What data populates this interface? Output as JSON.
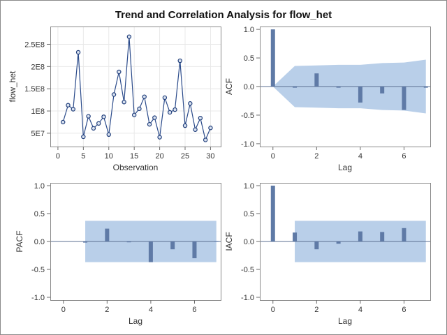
{
  "title": "Trend and Correlation Analysis for flow_het",
  "colors": {
    "series": "#2a4a8a",
    "band": "#b9cfe9",
    "bar": "#5f7aa6"
  },
  "chart_data": [
    {
      "id": "trend",
      "type": "line",
      "xlabel": "Observation",
      "ylabel": "flow_het",
      "xlim": [
        -1.5,
        32
      ],
      "ylim": [
        20000000,
        290000000
      ],
      "x_ticks": [
        0,
        5,
        10,
        15,
        20,
        25,
        30
      ],
      "y_ticks": [
        50000000,
        100000000,
        150000000,
        200000000,
        250000000
      ],
      "y_tick_labels": [
        "5E7",
        "1E8",
        "1.5E8",
        "2E8",
        "2.5E8"
      ],
      "grid": true,
      "x": [
        1,
        2,
        3,
        4,
        5,
        6,
        7,
        8,
        9,
        10,
        11,
        12,
        13,
        14,
        15,
        16,
        17,
        18,
        19,
        20,
        21,
        22,
        23,
        24,
        25,
        26,
        27,
        28,
        29,
        30
      ],
      "values": [
        75000000,
        113000000,
        104000000,
        232000000,
        42000000,
        88000000,
        61000000,
        72000000,
        87000000,
        47000000,
        137000000,
        188000000,
        120000000,
        267000000,
        91000000,
        105000000,
        132000000,
        70000000,
        85000000,
        41000000,
        130000000,
        97000000,
        103000000,
        213000000,
        67000000,
        117000000,
        58000000,
        84000000,
        35000000,
        62000000
      ]
    },
    {
      "id": "acf",
      "type": "bar",
      "xlabel": "Lag",
      "ylabel": "ACF",
      "xlim": [
        -0.6,
        7.2
      ],
      "ylim": [
        -1.05,
        1.05
      ],
      "x_ticks": [
        0,
        2,
        4,
        6
      ],
      "y_ticks": [
        -1.0,
        -0.5,
        0.0,
        0.5,
        1.0
      ],
      "y_tick_labels": [
        "-1.0",
        "-0.5",
        "0.0",
        "0.5",
        "1.0"
      ],
      "lags": [
        0,
        1,
        2,
        3,
        4,
        5,
        6,
        7
      ],
      "values": [
        1.0,
        -0.02,
        0.23,
        -0.02,
        -0.28,
        -0.12,
        -0.41,
        -0.02
      ],
      "band_upper": [
        0.0,
        0.36,
        0.37,
        0.38,
        0.38,
        0.41,
        0.42,
        0.47
      ],
      "band_lower": [
        0.0,
        -0.36,
        -0.37,
        -0.38,
        -0.38,
        -0.41,
        -0.42,
        -0.47
      ]
    },
    {
      "id": "pacf",
      "type": "bar",
      "xlabel": "Lag",
      "ylabel": "PACF",
      "xlim": [
        -0.6,
        7.2
      ],
      "ylim": [
        -1.05,
        1.05
      ],
      "x_ticks": [
        0,
        2,
        4,
        6
      ],
      "y_ticks": [
        -1.0,
        -0.5,
        0.0,
        0.5,
        1.0
      ],
      "y_tick_labels": [
        "-1.0",
        "-0.5",
        "0.0",
        "0.5",
        "1.0"
      ],
      "lags": [
        1,
        2,
        3,
        4,
        5,
        6,
        7
      ],
      "values": [
        -0.02,
        0.23,
        -0.01,
        -0.37,
        -0.14,
        -0.3,
        0.01
      ],
      "band_range": [
        1,
        7
      ],
      "band_upper": 0.37,
      "band_lower": -0.37
    },
    {
      "id": "iacf",
      "type": "bar",
      "xlabel": "Lag",
      "ylabel": "IACF",
      "xlim": [
        -0.6,
        7.2
      ],
      "ylim": [
        -1.05,
        1.05
      ],
      "x_ticks": [
        0,
        2,
        4,
        6
      ],
      "y_ticks": [
        -1.0,
        -0.5,
        0.0,
        0.5,
        1.0
      ],
      "y_tick_labels": [
        "-1.0",
        "-0.5",
        "0.0",
        "0.5",
        "1.0"
      ],
      "lags": [
        0,
        1,
        2,
        3,
        4,
        5,
        6
      ],
      "values": [
        1.0,
        0.16,
        -0.14,
        -0.04,
        0.18,
        0.17,
        0.24
      ],
      "band_range": [
        1,
        7
      ],
      "band_upper": 0.37,
      "band_lower": -0.37
    }
  ]
}
